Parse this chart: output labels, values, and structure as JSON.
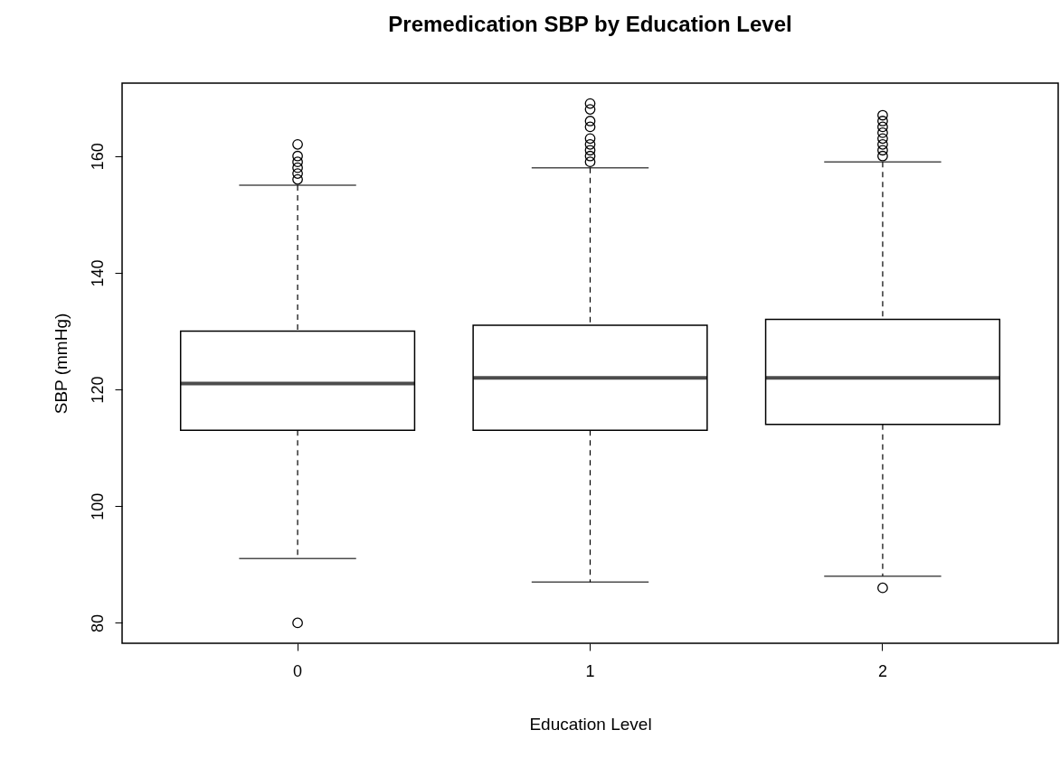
{
  "chart_data": {
    "type": "box",
    "title": "Premedication SBP by Education Level",
    "xlabel": "Education Level",
    "ylabel": "SBP (mmHg)",
    "categories": [
      "0",
      "1",
      "2"
    ],
    "boxes": [
      {
        "low": 91,
        "q1": 113,
        "median": 121,
        "q3": 130,
        "high": 155,
        "outliers": [
          80,
          156,
          157,
          158,
          159,
          160,
          162
        ]
      },
      {
        "low": 87,
        "q1": 113,
        "median": 122,
        "q3": 131,
        "high": 158,
        "outliers": [
          159,
          160,
          161,
          162,
          163,
          165,
          166,
          168,
          169
        ]
      },
      {
        "low": 88,
        "q1": 114,
        "median": 122,
        "q3": 132,
        "high": 159,
        "outliers": [
          86,
          160,
          161,
          162,
          163,
          164,
          165,
          166,
          167
        ]
      }
    ],
    "ylim": [
      76.5,
      172.5
    ],
    "yticks": [
      80,
      100,
      120,
      140,
      160
    ],
    "grid": false
  }
}
